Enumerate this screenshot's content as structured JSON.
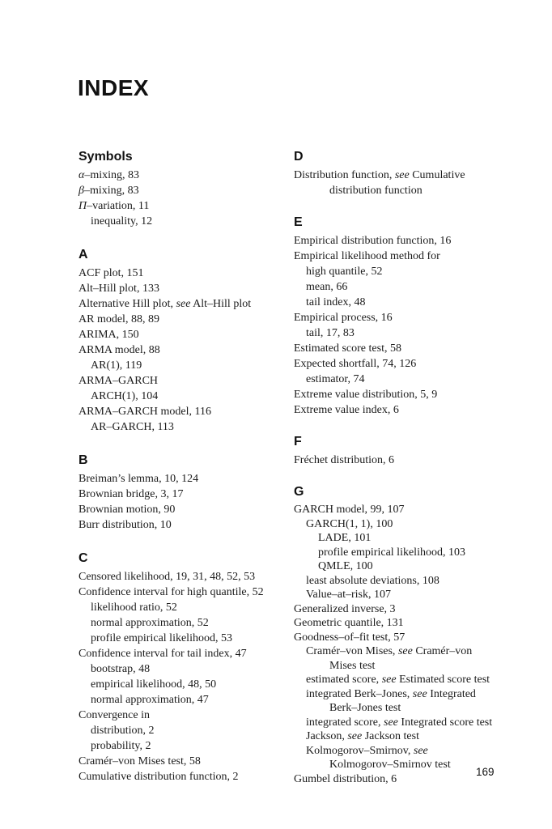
{
  "title": "INDEX",
  "page_number": "169",
  "columns": [
    {
      "sections": [
        {
          "heading": "Symbols",
          "entries": [
            {
              "level": 0,
              "segments": [
                {
                  "text": "α",
                  "italic": true
                },
                {
                  "text": "–mixing, 83"
                }
              ]
            },
            {
              "level": 0,
              "segments": [
                {
                  "text": "β",
                  "italic": true
                },
                {
                  "text": "–mixing, 83"
                }
              ]
            },
            {
              "level": 0,
              "segments": [
                {
                  "text": "Π",
                  "italic": true
                },
                {
                  "text": "–variation, 11"
                }
              ]
            },
            {
              "level": 1,
              "segments": [
                {
                  "text": "inequality, 12"
                }
              ]
            }
          ]
        },
        {
          "heading": "A",
          "entries": [
            {
              "level": 0,
              "segments": [
                {
                  "text": "ACF plot, 151"
                }
              ]
            },
            {
              "level": 0,
              "segments": [
                {
                  "text": "Alt–Hill plot, 133"
                }
              ]
            },
            {
              "level": 0,
              "segments": [
                {
                  "text": "Alternative Hill plot, "
                },
                {
                  "text": "see",
                  "italic": true
                },
                {
                  "text": " Alt–Hill plot"
                }
              ]
            },
            {
              "level": 0,
              "segments": [
                {
                  "text": "AR model, 88, 89"
                }
              ]
            },
            {
              "level": 0,
              "segments": [
                {
                  "text": "ARIMA, 150"
                }
              ]
            },
            {
              "level": 0,
              "segments": [
                {
                  "text": "ARMA model, 88"
                }
              ]
            },
            {
              "level": 1,
              "segments": [
                {
                  "text": "AR(1), 119"
                }
              ]
            },
            {
              "level": 0,
              "segments": [
                {
                  "text": "ARMA–GARCH"
                }
              ]
            },
            {
              "level": 1,
              "segments": [
                {
                  "text": "ARCH(1), 104"
                }
              ]
            },
            {
              "level": 0,
              "segments": [
                {
                  "text": "ARMA–GARCH model, 116"
                }
              ]
            },
            {
              "level": 1,
              "segments": [
                {
                  "text": "AR–GARCH, 113"
                }
              ]
            }
          ]
        },
        {
          "heading": "B",
          "entries": [
            {
              "level": 0,
              "segments": [
                {
                  "text": "Breiman’s lemma, 10, 124"
                }
              ]
            },
            {
              "level": 0,
              "segments": [
                {
                  "text": "Brownian bridge, 3, 17"
                }
              ]
            },
            {
              "level": 0,
              "segments": [
                {
                  "text": "Brownian motion, 90"
                }
              ]
            },
            {
              "level": 0,
              "segments": [
                {
                  "text": "Burr distribution, 10"
                }
              ]
            }
          ]
        },
        {
          "heading": "C",
          "entries": [
            {
              "level": 0,
              "segments": [
                {
                  "text": "Censored likelihood, 19, 31, 48, 52, 53"
                }
              ]
            },
            {
              "level": 0,
              "segments": [
                {
                  "text": "Confidence interval for high quantile, 52"
                }
              ]
            },
            {
              "level": 1,
              "segments": [
                {
                  "text": "likelihood ratio, 52"
                }
              ]
            },
            {
              "level": 1,
              "segments": [
                {
                  "text": "normal approximation, 52"
                }
              ]
            },
            {
              "level": 1,
              "segments": [
                {
                  "text": "profile empirical likelihood, 53"
                }
              ]
            },
            {
              "level": 0,
              "segments": [
                {
                  "text": "Confidence interval for tail index, 47"
                }
              ]
            },
            {
              "level": 1,
              "segments": [
                {
                  "text": "bootstrap, 48"
                }
              ]
            },
            {
              "level": 1,
              "segments": [
                {
                  "text": "empirical likelihood, 48, 50"
                }
              ]
            },
            {
              "level": 1,
              "segments": [
                {
                  "text": "normal approximation, 47"
                }
              ]
            },
            {
              "level": 0,
              "segments": [
                {
                  "text": "Convergence in"
                }
              ]
            },
            {
              "level": 1,
              "segments": [
                {
                  "text": "distribution, 2"
                }
              ]
            },
            {
              "level": 1,
              "segments": [
                {
                  "text": "probability, 2"
                }
              ]
            },
            {
              "level": 0,
              "segments": [
                {
                  "text": "Cramér–von Mises test, 58"
                }
              ]
            },
            {
              "level": 0,
              "segments": [
                {
                  "text": "Cumulative distribution function, 2"
                }
              ]
            }
          ]
        }
      ]
    },
    {
      "sections": [
        {
          "heading": "D",
          "entries": [
            {
              "level": 0,
              "segments": [
                {
                  "text": "Distribution function, "
                },
                {
                  "text": "see",
                  "italic": true
                },
                {
                  "text": " Cumulative"
                }
              ]
            },
            {
              "level": 3,
              "segments": [
                {
                  "text": "distribution function"
                }
              ]
            }
          ]
        },
        {
          "heading": "E",
          "entries": [
            {
              "level": 0,
              "segments": [
                {
                  "text": "Empirical distribution function, 16"
                }
              ]
            },
            {
              "level": 0,
              "segments": [
                {
                  "text": "Empirical likelihood method for"
                }
              ]
            },
            {
              "level": 1,
              "segments": [
                {
                  "text": "high quantile, 52"
                }
              ]
            },
            {
              "level": 1,
              "segments": [
                {
                  "text": "mean, 66"
                }
              ]
            },
            {
              "level": 1,
              "segments": [
                {
                  "text": "tail index, 48"
                }
              ]
            },
            {
              "level": 0,
              "segments": [
                {
                  "text": "Empirical process, 16"
                }
              ]
            },
            {
              "level": 1,
              "segments": [
                {
                  "text": "tail, 17, 83"
                }
              ]
            },
            {
              "level": 0,
              "segments": [
                {
                  "text": "Estimated score test, 58"
                }
              ]
            },
            {
              "level": 0,
              "segments": [
                {
                  "text": "Expected shortfall, 74, 126"
                }
              ]
            },
            {
              "level": 1,
              "segments": [
                {
                  "text": "estimator, 74"
                }
              ]
            },
            {
              "level": 0,
              "segments": [
                {
                  "text": "Extreme value distribution, 5, 9"
                }
              ]
            },
            {
              "level": 0,
              "segments": [
                {
                  "text": "Extreme value index, 6"
                }
              ]
            }
          ]
        },
        {
          "heading": "F",
          "entries": [
            {
              "level": 0,
              "segments": [
                {
                  "text": "Fréchet distribution, 6"
                }
              ]
            }
          ]
        },
        {
          "heading": "G",
          "tight": true,
          "entries": [
            {
              "level": 0,
              "segments": [
                {
                  "text": "GARCH model, 99, 107"
                }
              ]
            },
            {
              "level": 1,
              "segments": [
                {
                  "text": "GARCH(1, 1), 100"
                }
              ]
            },
            {
              "level": 2,
              "segments": [
                {
                  "text": "LADE, 101"
                }
              ]
            },
            {
              "level": 2,
              "segments": [
                {
                  "text": "profile empirical likelihood, 103"
                }
              ]
            },
            {
              "level": 2,
              "segments": [
                {
                  "text": "QMLE, 100"
                }
              ]
            },
            {
              "level": 1,
              "segments": [
                {
                  "text": "least absolute deviations, 108"
                }
              ]
            },
            {
              "level": 1,
              "segments": [
                {
                  "text": "Value–at–risk, 107"
                }
              ]
            },
            {
              "level": 0,
              "segments": [
                {
                  "text": "Generalized inverse, 3"
                }
              ]
            },
            {
              "level": 0,
              "segments": [
                {
                  "text": "Geometric quantile, 131"
                }
              ]
            },
            {
              "level": 0,
              "segments": [
                {
                  "text": "Goodness–of–fit test, 57"
                }
              ]
            },
            {
              "level": 1,
              "segments": [
                {
                  "text": "Cramér–von Mises, "
                },
                {
                  "text": "see",
                  "italic": true
                },
                {
                  "text": " Cramér–von"
                }
              ]
            },
            {
              "level": 3,
              "segments": [
                {
                  "text": "Mises test"
                }
              ]
            },
            {
              "level": 1,
              "segments": [
                {
                  "text": "estimated score, "
                },
                {
                  "text": "see",
                  "italic": true
                },
                {
                  "text": " Estimated score test"
                }
              ]
            },
            {
              "level": 1,
              "segments": [
                {
                  "text": "integrated Berk–Jones, "
                },
                {
                  "text": "see",
                  "italic": true
                },
                {
                  "text": " Integrated"
                }
              ]
            },
            {
              "level": 3,
              "segments": [
                {
                  "text": "Berk–Jones test"
                }
              ]
            },
            {
              "level": 1,
              "segments": [
                {
                  "text": "integrated score, "
                },
                {
                  "text": "see",
                  "italic": true
                },
                {
                  "text": " Integrated score test"
                }
              ]
            },
            {
              "level": 1,
              "segments": [
                {
                  "text": "Jackson, "
                },
                {
                  "text": "see",
                  "italic": true
                },
                {
                  "text": " Jackson test"
                }
              ]
            },
            {
              "level": 1,
              "segments": [
                {
                  "text": "Kolmogorov–Smirnov, "
                },
                {
                  "text": "see",
                  "italic": true
                }
              ]
            },
            {
              "level": 3,
              "segments": [
                {
                  "text": "Kolmogorov–Smirnov test"
                }
              ]
            },
            {
              "level": 0,
              "segments": [
                {
                  "text": "Gumbel distribution, 6"
                }
              ]
            }
          ]
        }
      ]
    }
  ]
}
